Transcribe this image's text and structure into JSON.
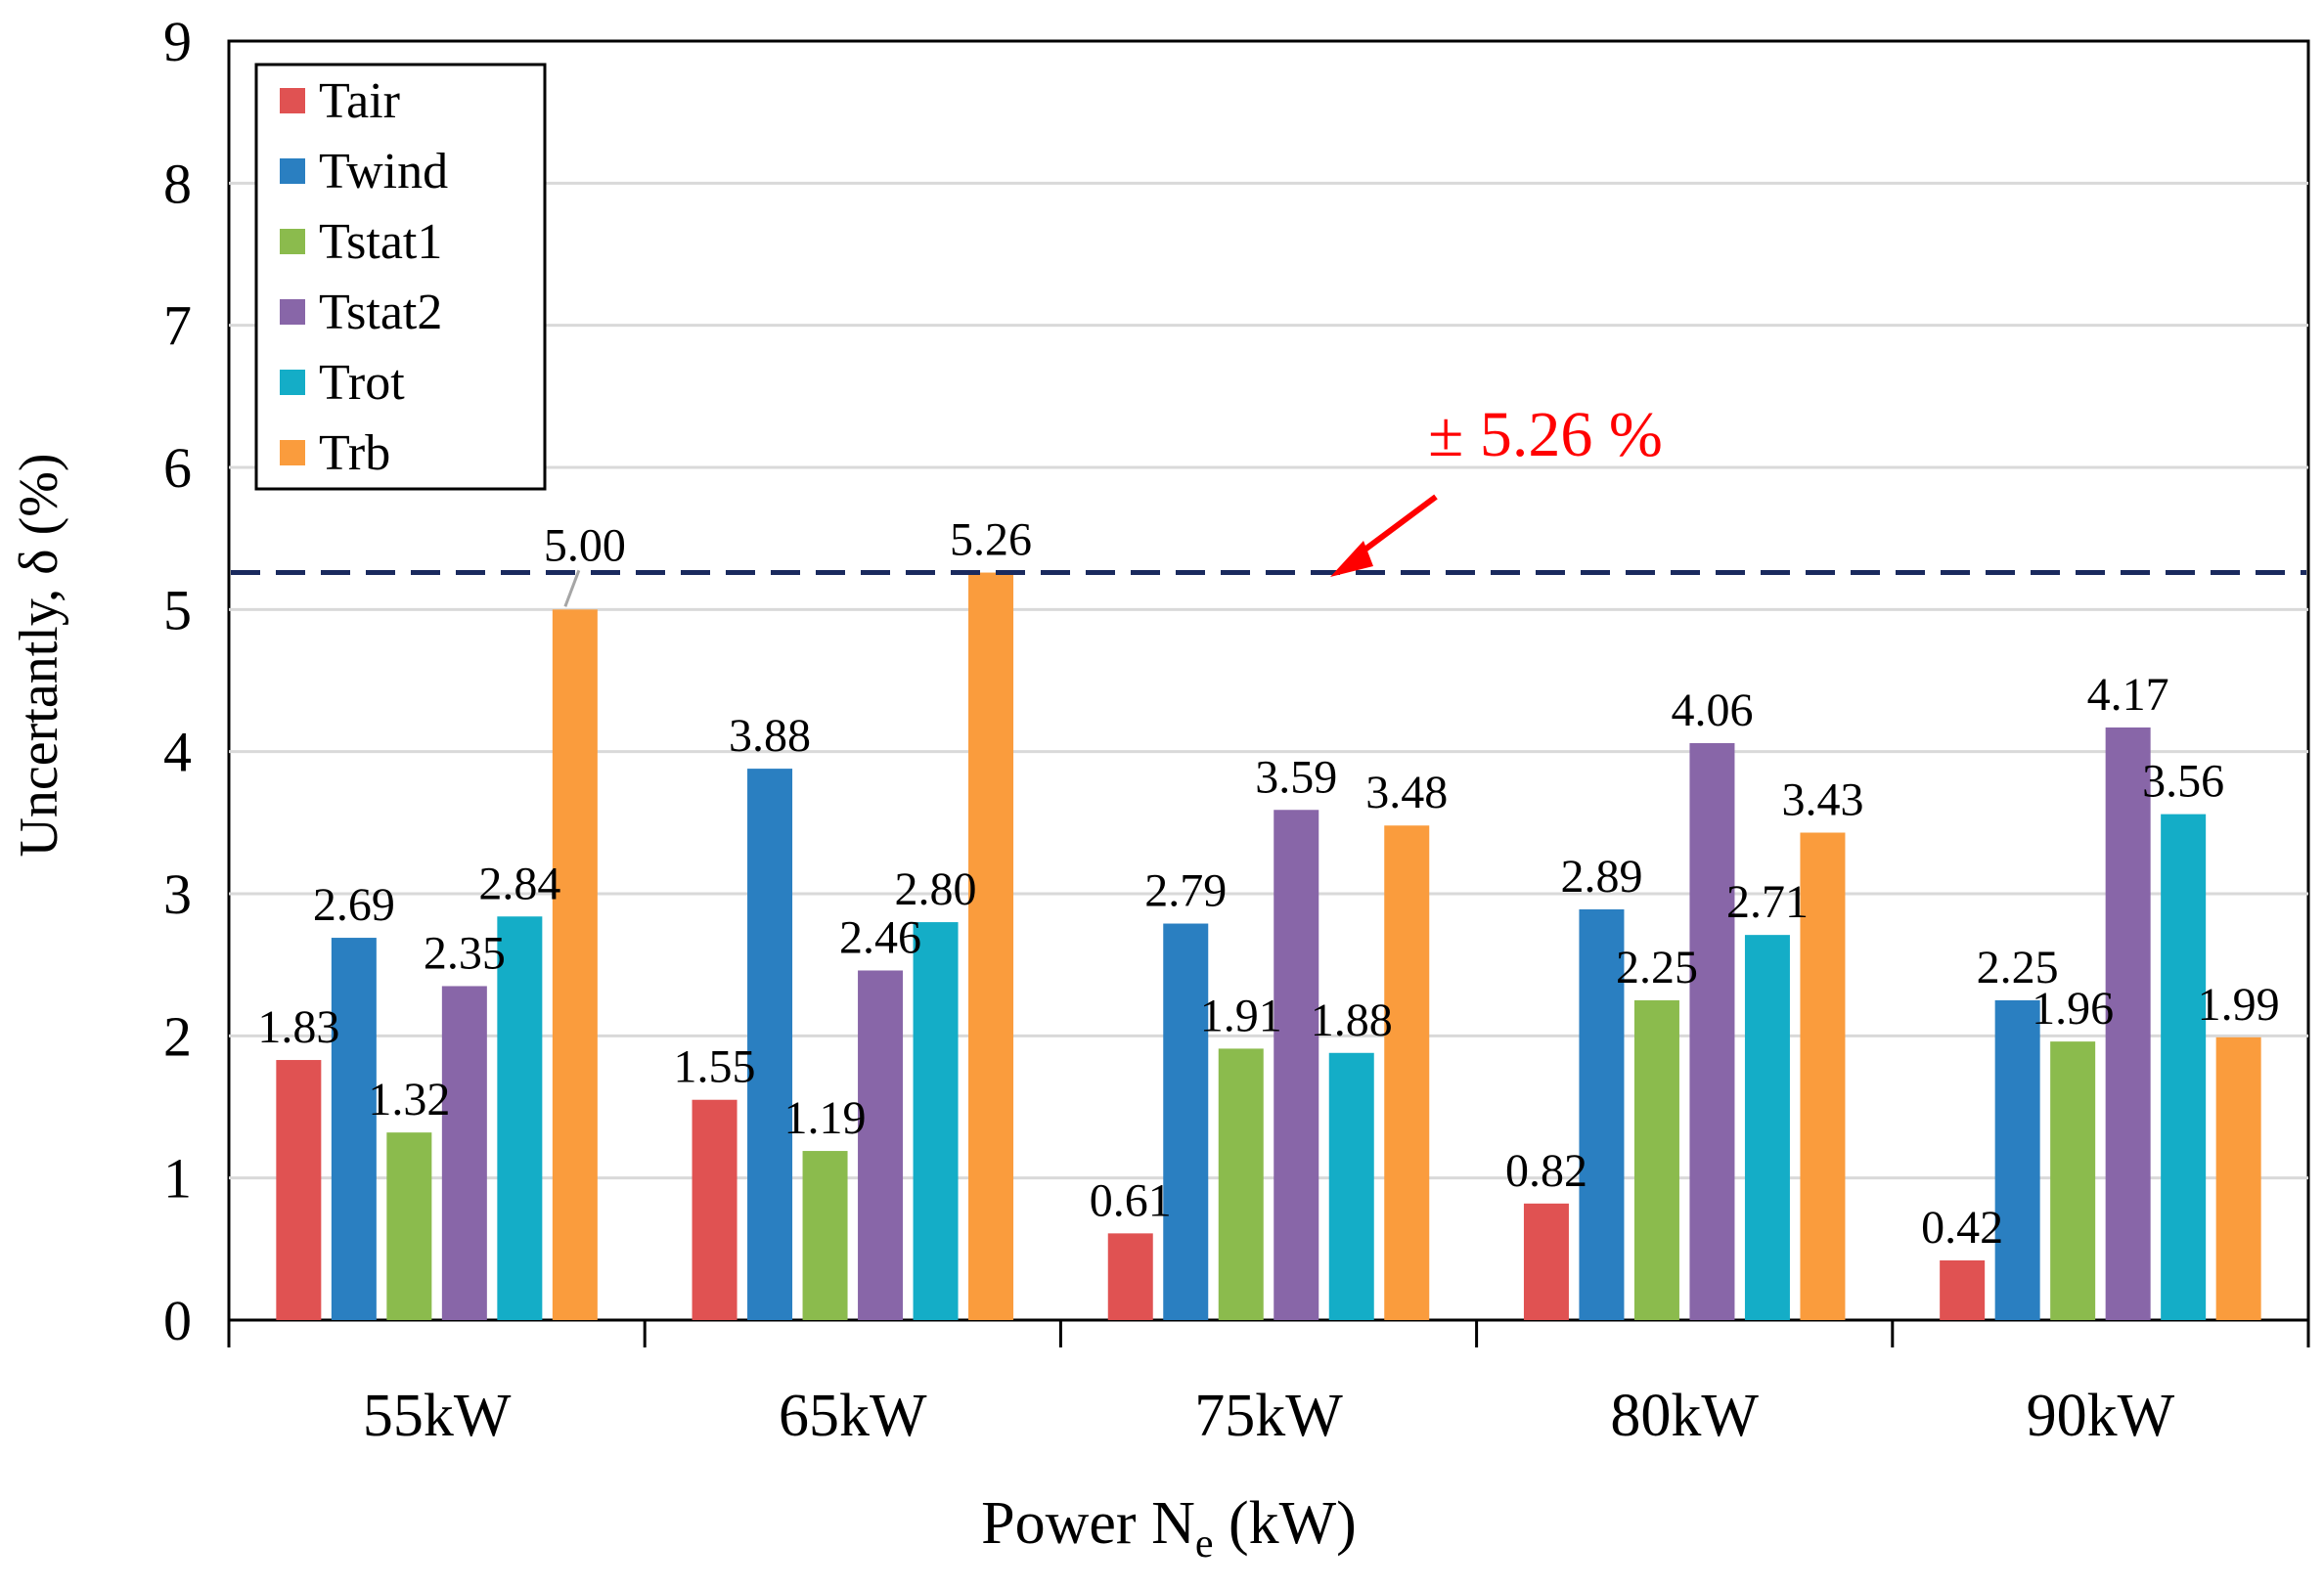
{
  "chart_data": {
    "type": "bar",
    "title": "",
    "xlabel_main": "Power N",
    "xlabel_sub": "e",
    "xlabel_tail": " (kW)",
    "ylabel": "Uncertantly, δ (%)",
    "ylim": [
      0,
      9
    ],
    "yticks": [
      "0",
      "1",
      "2",
      "3",
      "4",
      "5",
      "6",
      "7",
      "8",
      "9"
    ],
    "grid": true,
    "legend_position": "top-left",
    "categories": [
      "55kW",
      "65kW",
      "75kW",
      "80kW",
      "90kW"
    ],
    "series": [
      {
        "name": "Tair",
        "color": "#e05252",
        "values": [
          1.83,
          1.55,
          0.61,
          0.82,
          0.42
        ],
        "labels": [
          "1.83",
          "1.55",
          "0.61",
          "0.82",
          "0.42"
        ]
      },
      {
        "name": "Twind",
        "color": "#2a7fc1",
        "values": [
          2.69,
          3.88,
          2.79,
          2.89,
          2.25
        ],
        "labels": [
          "2.69",
          "3.88",
          "2.79",
          "2.89",
          "2.25"
        ]
      },
      {
        "name": "Tstat1",
        "color": "#8bbb4d",
        "values": [
          1.32,
          1.19,
          1.91,
          2.25,
          1.96
        ],
        "labels": [
          "1.32",
          "1.19",
          "1.91",
          "2.25",
          "1.96"
        ]
      },
      {
        "name": "Tstat2",
        "color": "#8866a8",
        "values": [
          2.35,
          2.46,
          3.59,
          4.06,
          4.17
        ],
        "labels": [
          "2.35",
          "2.46",
          "3.59",
          "4.06",
          "4.17"
        ]
      },
      {
        "name": "Trot",
        "color": "#14adc7",
        "values": [
          2.84,
          2.8,
          1.88,
          2.71,
          3.56
        ],
        "labels": [
          "2.84",
          "2.80",
          "1.88",
          "2.71",
          "3.56"
        ]
      },
      {
        "name": "Trb",
        "color": "#fa9c3d",
        "values": [
          5.0,
          5.26,
          3.48,
          3.43,
          1.99
        ],
        "labels": [
          "5.00",
          "5.26",
          "3.48",
          "3.43",
          "1.99"
        ]
      }
    ],
    "reference_line": {
      "value": 5.26,
      "label": "± 5.26 %",
      "color": "#1a2a5e",
      "label_color": "#ff0000"
    }
  }
}
